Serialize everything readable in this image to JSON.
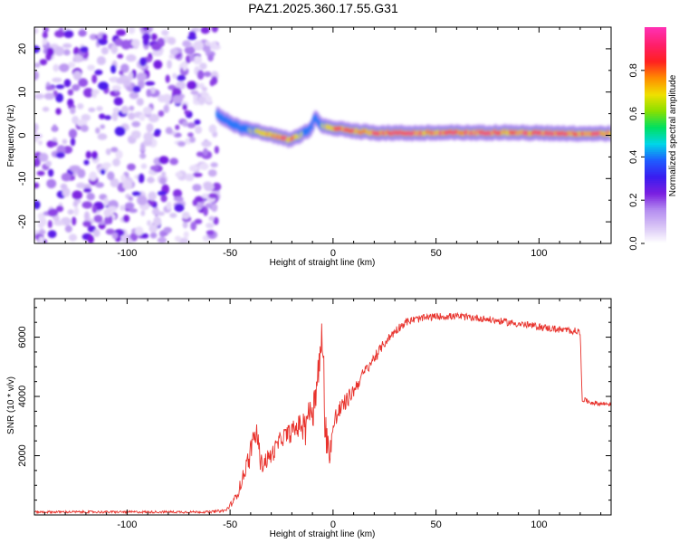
{
  "title": "PAZ1.2025.360.17.55.G31",
  "colors": {
    "snr_line": "#e8322c",
    "background": "#ffffff",
    "colormap": [
      "#ffffff",
      "#d8c4f6",
      "#b48cf0",
      "#7a1fe0",
      "#3a1cf0",
      "#1f5cff",
      "#00d6e8",
      "#00e060",
      "#8ae000",
      "#f0e000",
      "#ff8c00",
      "#ff2020",
      "#ff1f6a",
      "#ff2fb0"
    ]
  },
  "chart_data": [
    {
      "type": "heatmap",
      "title": "PAZ1.2025.360.17.55.G31",
      "xlabel": "Height of straight line (km)",
      "ylabel": "Frequency (Hz)",
      "xlim": [
        -145,
        135
      ],
      "ylim": [
        -25,
        25
      ],
      "x_ticks": [
        -100,
        -50,
        0,
        50,
        100
      ],
      "y_ticks": [
        -20,
        -10,
        0,
        10,
        20
      ],
      "noise_region_x": [
        -145,
        -56
      ],
      "ridge": {
        "x": [
          -56,
          -54,
          -52,
          -50,
          -48,
          -46,
          -44,
          -42,
          -40,
          -38,
          -36,
          -34,
          -32,
          -30,
          -28,
          -26,
          -24,
          -22,
          -20,
          -18,
          -16,
          -14,
          -12,
          -10,
          -9,
          -8,
          -6,
          -4,
          -2,
          0,
          5,
          10,
          20,
          40,
          60,
          70,
          80,
          90,
          100,
          110,
          120,
          135
        ],
        "freq": [
          5,
          4,
          3.5,
          3,
          2.5,
          2,
          1.5,
          1.5,
          1,
          1,
          1,
          0.5,
          0.5,
          0,
          0,
          -0.5,
          -0.5,
          -1,
          -1,
          -0.5,
          0,
          0.5,
          1,
          2,
          4,
          4,
          2.5,
          2,
          1.8,
          1.5,
          1.5,
          1,
          0.6,
          0.5,
          0.6,
          0.6,
          0.7,
          0.6,
          0.5,
          0.5,
          0.4,
          0.4
        ],
        "amp": [
          0.45,
          0.5,
          0.45,
          0.5,
          0.5,
          0.55,
          0.55,
          0.6,
          0.65,
          0.7,
          0.75,
          0.8,
          0.85,
          0.85,
          0.85,
          0.85,
          0.9,
          0.9,
          0.85,
          0.8,
          0.7,
          0.6,
          0.5,
          0.45,
          0.55,
          0.5,
          0.6,
          0.7,
          0.8,
          0.85,
          0.9,
          0.9,
          0.95,
          0.95,
          0.95,
          0.95,
          0.95,
          0.95,
          0.95,
          0.95,
          0.95,
          0.9
        ]
      },
      "colorbar": {
        "label": "Normalized spectral amplitude",
        "range": [
          0,
          1
        ],
        "ticks": [
          0.0,
          0.2,
          0.4,
          0.6,
          0.8
        ],
        "tick_labels": [
          "0.0",
          "0.2",
          "0.4",
          "0.6",
          "0.8"
        ]
      }
    },
    {
      "type": "line",
      "xlabel": "Height of straight line (km)",
      "ylabel": "SNR (10 * v/v)",
      "xlim": [
        -145,
        135
      ],
      "ylim": [
        0,
        7300
      ],
      "x_ticks": [
        -100,
        -50,
        0,
        50,
        100
      ],
      "y_ticks": [
        2000,
        4000,
        6000
      ],
      "series": [
        {
          "name": "SNR",
          "x": [
            -145,
            -60,
            -52,
            -48,
            -46,
            -44,
            -42,
            -40,
            -37,
            -35,
            -30,
            -25,
            -20,
            -15,
            -10,
            -8,
            -6,
            -5,
            -4,
            -2,
            0,
            2,
            5,
            10,
            15,
            20,
            25,
            30,
            35,
            40,
            50,
            60,
            70,
            80,
            90,
            100,
            110,
            119,
            120,
            121,
            125,
            130,
            135
          ],
          "y": [
            100,
            100,
            150,
            500,
            800,
            1200,
            1700,
            2200,
            2800,
            1700,
            2000,
            2600,
            2800,
            3100,
            3600,
            4200,
            5500,
            6200,
            3200,
            2000,
            2900,
            3400,
            3700,
            4200,
            4800,
            5300,
            5800,
            6200,
            6500,
            6600,
            6700,
            6700,
            6650,
            6550,
            6450,
            6350,
            6250,
            6200,
            6100,
            3900,
            3800,
            3750,
            3750
          ],
          "noise": [
            40,
            40,
            60,
            120,
            180,
            250,
            300,
            350,
            400,
            350,
            300,
            300,
            350,
            400,
            450,
            500,
            900,
            800,
            900,
            400,
            500,
            400,
            300,
            250,
            200,
            180,
            160,
            150,
            140,
            130,
            120,
            120,
            120,
            120,
            120,
            120,
            120,
            120,
            120,
            90,
            80,
            80,
            80
          ]
        }
      ]
    }
  ]
}
